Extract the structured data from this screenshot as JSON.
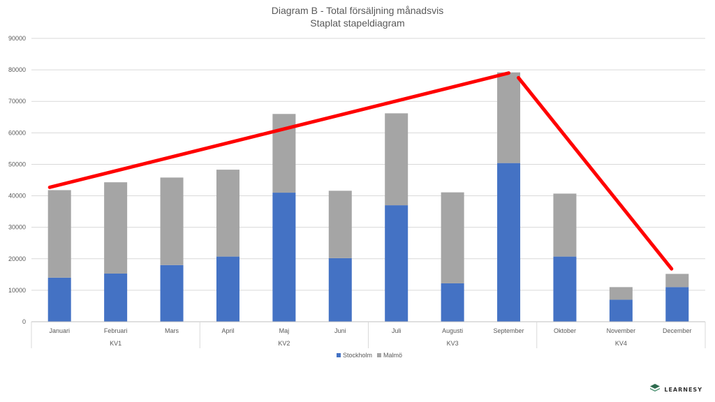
{
  "chart_data": {
    "type": "bar",
    "stacked": true,
    "title": "Diagram B - Total försäljning månadsvis",
    "subtitle": "Staplat stapeldiagram",
    "categories": [
      "Januari",
      "Februari",
      "Mars",
      "April",
      "Maj",
      "Juni",
      "Juli",
      "Augusti",
      "September",
      "Oktober",
      "November",
      "December"
    ],
    "groups": [
      {
        "label": "KV1",
        "start": 0,
        "end": 2
      },
      {
        "label": "KV2",
        "start": 3,
        "end": 5
      },
      {
        "label": "KV3",
        "start": 6,
        "end": 8
      },
      {
        "label": "KV4",
        "start": 9,
        "end": 11
      }
    ],
    "series": [
      {
        "name": "Stockholm",
        "color": "#4472C4",
        "values": [
          14000,
          15300,
          18000,
          20700,
          41000,
          20200,
          37000,
          12200,
          50400,
          20700,
          7000,
          11000
        ]
      },
      {
        "name": "Malmö",
        "color": "#A5A5A5",
        "values": [
          27800,
          29000,
          27800,
          27600,
          25000,
          21400,
          29200,
          28900,
          28800,
          20000,
          4000,
          4200
        ]
      }
    ],
    "ylim": [
      0,
      90000
    ],
    "yticks": [
      0,
      10000,
      20000,
      30000,
      40000,
      50000,
      60000,
      70000,
      80000,
      90000
    ],
    "grid": true,
    "legend_position": "bottom",
    "annotation_lines": [
      {
        "color": "#FF0000",
        "from": {
          "x": "Januari",
          "y": 42700
        },
        "to": {
          "x": "September",
          "y": 79000
        }
      },
      {
        "color": "#FF0000",
        "from": {
          "x": "September",
          "y": 77500
        },
        "to": {
          "x": "December",
          "y": 16800
        }
      }
    ]
  },
  "logo": {
    "text": "LEARNESY",
    "icon": "layers-icon"
  }
}
